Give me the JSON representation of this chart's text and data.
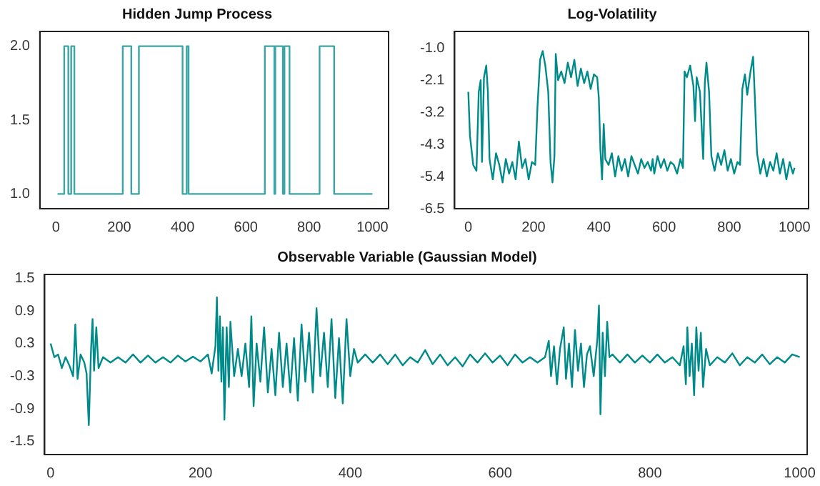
{
  "chart_data": [
    {
      "type": "step",
      "title": "Hidden Jump Process",
      "color": "#3aa5a5",
      "xlim": [
        -51,
        1051
      ],
      "xticks": [
        0,
        200,
        400,
        600,
        800,
        1000
      ],
      "ylim": [
        0.9,
        2.1
      ],
      "yticks": [
        {
          "value": 1,
          "label": "1.0"
        },
        1.5,
        {
          "value": 2,
          "label": "2.0"
        }
      ],
      "x": [
        5,
        26,
        39,
        48,
        58,
        211,
        238,
        262,
        400,
        413,
        419,
        660,
        690,
        693,
        717,
        722,
        738,
        833,
        879,
        1000
      ],
      "values": [
        1,
        2,
        1,
        2,
        1,
        2,
        1,
        2,
        1,
        2,
        1,
        2,
        1,
        2,
        1,
        2,
        1,
        2,
        1,
        1
      ]
    },
    {
      "type": "line",
      "title": "Log-Volatility",
      "color": "#008b8b",
      "xlim": [
        -42,
        1043
      ],
      "xticks": [
        0,
        200,
        400,
        600,
        800,
        1000
      ],
      "ylim": [
        -6.5,
        -0.43
      ],
      "yticks": [
        {
          "value": -1,
          "label": "-1.0"
        },
        -2.1,
        -3.2,
        -4.3,
        -5.4,
        -6.5
      ],
      "x": [
        0,
        5,
        15,
        25,
        32,
        38,
        42,
        48,
        55,
        60,
        65,
        75,
        85,
        95,
        105,
        115,
        125,
        135,
        145,
        155,
        165,
        175,
        185,
        195,
        205,
        212,
        220,
        228,
        236,
        245,
        252,
        258,
        264,
        268,
        275,
        285,
        295,
        305,
        315,
        325,
        335,
        345,
        355,
        365,
        375,
        385,
        395,
        400,
        405,
        410,
        415,
        420,
        430,
        440,
        450,
        460,
        470,
        480,
        490,
        500,
        510,
        520,
        530,
        540,
        550,
        560,
        565,
        570,
        580,
        590,
        600,
        610,
        620,
        630,
        640,
        650,
        658,
        663,
        670,
        680,
        690,
        695,
        700,
        710,
        720,
        725,
        730,
        738,
        745,
        755,
        765,
        775,
        785,
        795,
        805,
        815,
        825,
        833,
        840,
        848,
        855,
        865,
        873,
        878,
        885,
        895,
        905,
        915,
        925,
        935,
        945,
        955,
        965,
        975,
        985,
        995,
        1000
      ],
      "values": [
        -2.5,
        -4.0,
        -5.0,
        -5.2,
        -2.5,
        -2.1,
        -4.9,
        -2.0,
        -1.6,
        -2.5,
        -4.8,
        -5.5,
        -4.6,
        -5.0,
        -5.6,
        -4.8,
        -5.3,
        -4.9,
        -5.5,
        -4.2,
        -5.1,
        -4.8,
        -5.5,
        -4.9,
        -5.0,
        -3.0,
        -1.4,
        -1.1,
        -1.6,
        -2.5,
        -4.9,
        -5.6,
        -4.7,
        -1.2,
        -2.1,
        -1.8,
        -2.2,
        -1.5,
        -2.0,
        -1.4,
        -2.3,
        -1.7,
        -2.2,
        -1.8,
        -2.4,
        -1.9,
        -2.0,
        -2.7,
        -4.5,
        -5.5,
        -3.6,
        -4.8,
        -5.0,
        -4.6,
        -5.4,
        -4.7,
        -5.2,
        -4.8,
        -5.4,
        -4.7,
        -5.0,
        -5.3,
        -4.8,
        -5.1,
        -4.9,
        -5.2,
        -4.8,
        -5.3,
        -4.7,
        -5.1,
        -4.8,
        -5.2,
        -4.9,
        -5.0,
        -5.3,
        -4.8,
        -5.1,
        -1.8,
        -2.0,
        -1.6,
        -2.3,
        -3.5,
        -2.0,
        -2.5,
        -4.8,
        -2.2,
        -1.5,
        -2.5,
        -4.7,
        -5.2,
        -4.6,
        -5.0,
        -4.5,
        -5.2,
        -4.8,
        -5.3,
        -4.9,
        -5.0,
        -2.4,
        -1.9,
        -2.6,
        -1.8,
        -1.3,
        -2.6,
        -4.6,
        -5.3,
        -4.8,
        -5.4,
        -4.9,
        -5.2,
        -4.6,
        -5.3,
        -4.8,
        -5.5,
        -4.9,
        -5.3,
        -5.1
      ]
    },
    {
      "type": "line",
      "title": "Observable Variable (Gaussian Model)",
      "color": "#008b8b",
      "xlim": [
        -8,
        1010
      ],
      "xticks": [
        0,
        200,
        400,
        600,
        800,
        1000
      ],
      "ylim": [
        -1.74,
        1.57
      ],
      "yticks": [
        1.5,
        0.9,
        0.3,
        -0.3,
        -0.9,
        -1.5
      ],
      "x": [
        0,
        5,
        10,
        15,
        20,
        25,
        30,
        33,
        36,
        40,
        45,
        48,
        51,
        54,
        56,
        58,
        61,
        64,
        70,
        80,
        90,
        100,
        110,
        120,
        130,
        140,
        150,
        160,
        170,
        180,
        190,
        200,
        210,
        215,
        220,
        222,
        224,
        226,
        228,
        230,
        232,
        235,
        238,
        240,
        245,
        250,
        255,
        260,
        265,
        268,
        271,
        275,
        280,
        285,
        290,
        295,
        300,
        305,
        310,
        315,
        320,
        325,
        330,
        335,
        340,
        345,
        350,
        355,
        360,
        365,
        370,
        375,
        380,
        385,
        390,
        395,
        400,
        405,
        410,
        420,
        430,
        440,
        450,
        460,
        470,
        480,
        490,
        500,
        510,
        520,
        530,
        540,
        550,
        560,
        570,
        580,
        590,
        600,
        610,
        620,
        630,
        640,
        650,
        660,
        665,
        668,
        672,
        676,
        680,
        685,
        688,
        692,
        696,
        700,
        704,
        708,
        712,
        716,
        720,
        725,
        730,
        732,
        734,
        737,
        740,
        743,
        746,
        750,
        760,
        770,
        780,
        790,
        800,
        810,
        820,
        830,
        840,
        845,
        848,
        850,
        853,
        856,
        859,
        862,
        865,
        868,
        871,
        875,
        880,
        890,
        900,
        910,
        920,
        930,
        940,
        950,
        960,
        970,
        980,
        990,
        1000
      ],
      "values": [
        0.3,
        0.05,
        0.1,
        -0.15,
        0.05,
        -0.1,
        -0.3,
        0.65,
        -0.35,
        0.1,
        -0.05,
        -0.25,
        -1.2,
        0.2,
        0.75,
        -0.2,
        0.6,
        -0.15,
        0.05,
        -0.05,
        0.05,
        -0.05,
        0.1,
        -0.05,
        0.08,
        -0.05,
        0.05,
        -0.05,
        0.08,
        -0.03,
        0.06,
        -0.03,
        0.1,
        -0.25,
        0.25,
        1.15,
        -0.2,
        0.8,
        -0.4,
        0.6,
        -1.1,
        0.6,
        -0.5,
        0.7,
        -0.3,
        0.2,
        -0.3,
        0.3,
        -0.5,
        0.8,
        -0.85,
        0.3,
        -0.4,
        0.6,
        -0.6,
        0.2,
        -0.65,
        0.5,
        -0.5,
        0.3,
        -0.6,
        0.4,
        -0.75,
        0.65,
        -0.4,
        0.5,
        -0.6,
        0.95,
        -0.3,
        0.5,
        -0.5,
        0.75,
        -0.7,
        0.4,
        -0.8,
        0.75,
        -0.3,
        0.2,
        -0.05,
        0.1,
        -0.05,
        0.1,
        -0.08,
        0.1,
        -0.1,
        0.05,
        -0.05,
        0.18,
        -0.08,
        0.1,
        -0.1,
        0.05,
        -0.12,
        0.1,
        -0.05,
        0.12,
        -0.05,
        0.08,
        -0.1,
        0.1,
        -0.05,
        0.05,
        -0.05,
        0.05,
        0.35,
        -0.3,
        0.25,
        -0.45,
        0.2,
        0.6,
        -0.35,
        0.3,
        -0.5,
        0.55,
        -0.2,
        0.3,
        -0.5,
        0.1,
        0.25,
        -0.3,
        0.4,
        1.0,
        -1.0,
        0.5,
        -0.3,
        0.7,
        0.05,
        0.1,
        -0.05,
        0.1,
        -0.05,
        0.08,
        -0.05,
        0.1,
        -0.05,
        0.05,
        -0.1,
        0.25,
        -0.45,
        0.6,
        -0.3,
        0.3,
        -0.65,
        0.6,
        -0.2,
        0.5,
        -0.5,
        0.2,
        -0.1,
        0.05,
        -0.05,
        0.12,
        -0.1,
        0.05,
        -0.05,
        0.1,
        -0.08,
        0.05,
        -0.05,
        0.1,
        0.05
      ]
    }
  ]
}
